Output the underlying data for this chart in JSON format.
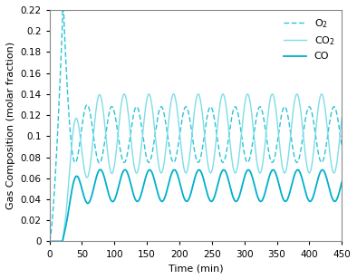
{
  "xlabel": "Time (min)",
  "ylabel": "Gas Composition (molar fraction)",
  "xlim": [
    0,
    450
  ],
  "ylim": [
    0,
    0.22
  ],
  "yticks": [
    0,
    0.02,
    0.04,
    0.06,
    0.08,
    0.1,
    0.12,
    0.14,
    0.16,
    0.18,
    0.2,
    0.22
  ],
  "xticks": [
    0,
    50,
    100,
    150,
    200,
    250,
    300,
    350,
    400,
    450
  ],
  "color_O2": "#29c4d8",
  "color_CO2": "#7ddde8",
  "color_CO": "#00b0cc",
  "legend_labels": [
    "O$_2$",
    "CO$_2$",
    "CO"
  ],
  "period": 38.0,
  "t_peak_O2": 20.0,
  "O2_initial_peak": 0.21,
  "O2_steady_max": 0.128,
  "O2_steady_min": 0.075,
  "CO2_steady_max": 0.14,
  "CO2_steady_min": 0.065,
  "CO_steady_max": 0.068,
  "CO_steady_min": 0.038
}
